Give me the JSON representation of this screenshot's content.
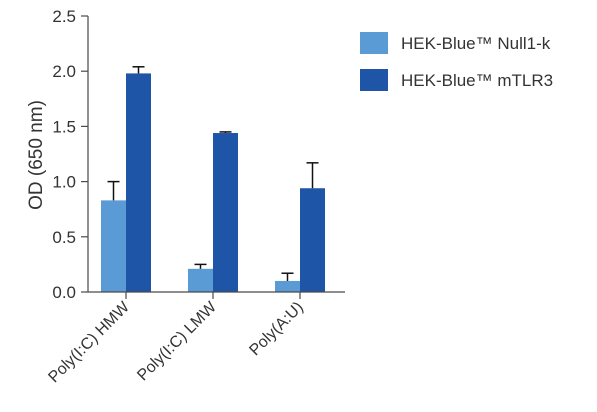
{
  "chart_data": {
    "type": "bar",
    "title": "",
    "xlabel": "",
    "ylabel": "OD (650 nm)",
    "ylim": [
      0,
      2.5
    ],
    "yticks": [
      0.0,
      0.5,
      1.0,
      1.5,
      2.0,
      2.5
    ],
    "ytick_labels": [
      "0.0",
      "0.5",
      "1.0",
      "1.5",
      "2.0",
      "2.5"
    ],
    "categories": [
      "Poly(I:C) HMW",
      "Poly(I:C) LMW",
      "Poly(A:U)"
    ],
    "series": [
      {
        "name": "HEK-Blue™ Null1-k",
        "color": "#5b9bd5",
        "values": [
          0.83,
          0.21,
          0.1
        ],
        "errors": [
          0.17,
          0.04,
          0.07
        ]
      },
      {
        "name": "HEK-Blue™ mTLR3",
        "color": "#1f55a6",
        "values": [
          1.98,
          1.44,
          0.94
        ],
        "errors": [
          0.06,
          0.01,
          0.23
        ]
      }
    ],
    "legend": {
      "position": "top-right"
    },
    "grid": false
  }
}
